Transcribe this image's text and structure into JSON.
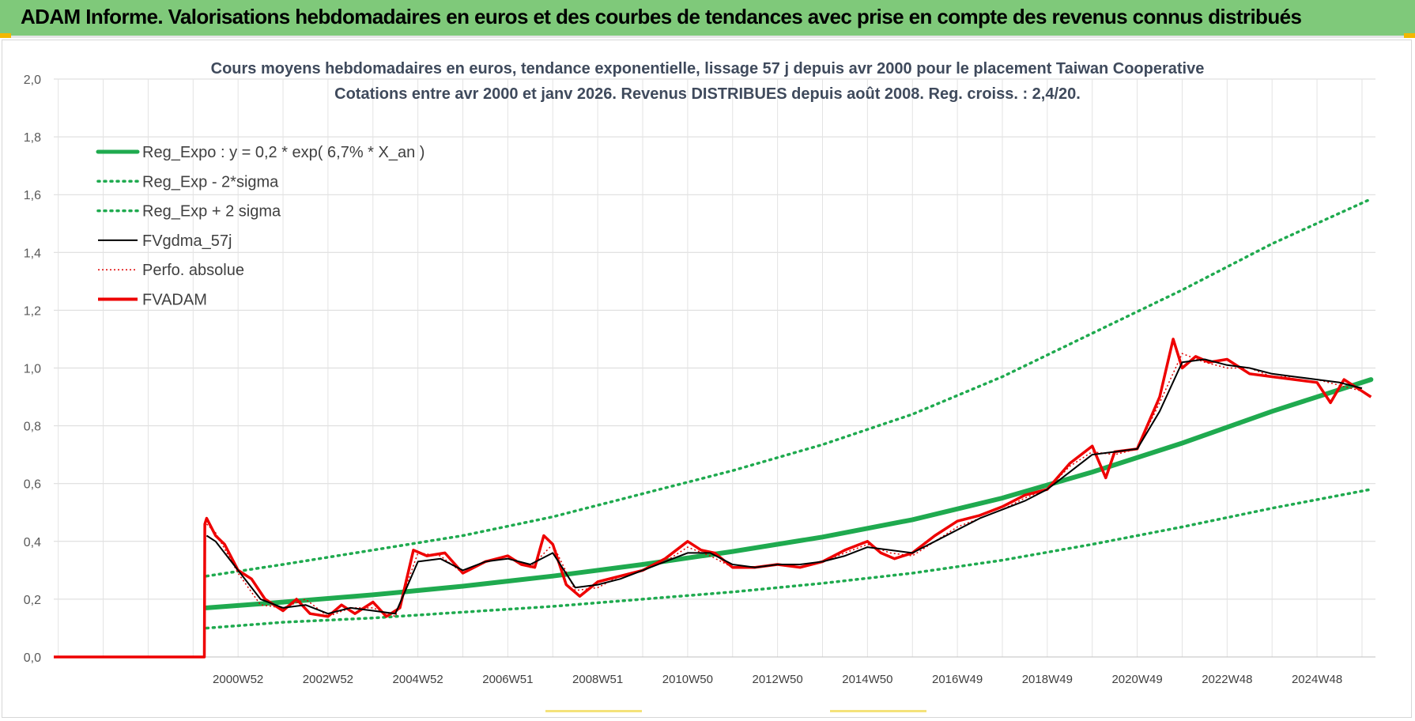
{
  "header": {
    "title": "ADAM Informe. Valorisations hebdomadaires en euros et des courbes de tendances avec prise en compte des revenus connus distribués"
  },
  "colors": {
    "banner": "#7fc97a",
    "reg_expo": "#1faa4f",
    "sigma_bands": "#1faa4f",
    "fvgdma": "#000000",
    "perfo": "#e00000",
    "fvadam": "#ee0000"
  },
  "chart_data": {
    "type": "line",
    "title": "Cours moyens hebdomadaires en euros, tendance exponentielle, lissage 57 j depuis avr 2000 pour le placement Taiwan Cooperative",
    "subtitle": "Cotations entre avr 2000 et janv 2026. Revenus DISTRIBUES depuis août 2008. Reg. croiss. : 2,4/20.",
    "xlabel": "",
    "ylabel": "",
    "ylim": [
      0,
      2.0
    ],
    "xlim": [
      1996.9,
      2026.3
    ],
    "y_ticks": [
      "0,0",
      "0,2",
      "0,4",
      "0,6",
      "0,8",
      "1,0",
      "1,2",
      "1,4",
      "1,6",
      "1,8",
      "2,0"
    ],
    "x_tick_labels": [
      "2000W52",
      "2002W52",
      "2004W52",
      "2006W51",
      "2008W51",
      "2010W50",
      "2012W50",
      "2014W50",
      "2016W49",
      "2018W49",
      "2020W49",
      "2022W48",
      "2024W48"
    ],
    "x_tick_years": [
      2001.0,
      2003.0,
      2005.0,
      2007.0,
      2009.0,
      2011.0,
      2013.0,
      2015.0,
      2017.0,
      2019.0,
      2021.0,
      2023.0,
      2025.0
    ],
    "grid": true,
    "legend_position": "top-left",
    "legend": [
      "Reg_Expo : y = 0,2 * exp( 6,7% *  X_an )",
      "Reg_Exp - 2*sigma",
      "Reg_Exp + 2 sigma",
      "FVgdma_57j",
      "Perfo. absolue",
      "FVADAM"
    ],
    "series": [
      {
        "name": "Reg_Expo : y = 0,2 * exp( 6,7% *  X_an )",
        "style": "solid-thick",
        "x": [
          2000.3,
          2002.0,
          2004.0,
          2006.0,
          2008.0,
          2010.0,
          2012.0,
          2014.0,
          2016.0,
          2018.0,
          2020.0,
          2022.0,
          2024.0,
          2026.2
        ],
        "values": [
          0.17,
          0.19,
          0.215,
          0.245,
          0.28,
          0.32,
          0.365,
          0.415,
          0.475,
          0.55,
          0.64,
          0.74,
          0.85,
          0.96
        ]
      },
      {
        "name": "Reg_Exp - 2*sigma",
        "style": "dotted",
        "x": [
          2000.3,
          2002.0,
          2004.0,
          2006.0,
          2008.0,
          2010.0,
          2012.0,
          2014.0,
          2016.0,
          2018.0,
          2020.0,
          2022.0,
          2024.0,
          2026.2
        ],
        "values": [
          0.1,
          0.12,
          0.135,
          0.155,
          0.175,
          0.2,
          0.225,
          0.255,
          0.29,
          0.335,
          0.39,
          0.45,
          0.515,
          0.58
        ]
      },
      {
        "name": "Reg_Exp + 2 sigma",
        "style": "dotted",
        "x": [
          2000.3,
          2002.0,
          2004.0,
          2006.0,
          2008.0,
          2010.0,
          2012.0,
          2014.0,
          2016.0,
          2018.0,
          2020.0,
          2022.0,
          2024.0,
          2026.2
        ],
        "values": [
          0.28,
          0.32,
          0.37,
          0.42,
          0.485,
          0.565,
          0.645,
          0.735,
          0.84,
          0.97,
          1.12,
          1.27,
          1.43,
          1.585
        ]
      },
      {
        "name": "FVgdma_57j",
        "style": "solid-thin",
        "x": [
          2000.3,
          2000.5,
          2001.0,
          2001.5,
          2002.0,
          2002.5,
          2003.0,
          2003.5,
          2004.0,
          2004.5,
          2005.0,
          2005.5,
          2006.0,
          2006.5,
          2007.0,
          2007.5,
          2008.0,
          2008.5,
          2009.0,
          2009.5,
          2010.0,
          2010.5,
          2011.0,
          2011.5,
          2012.0,
          2012.5,
          2013.0,
          2013.5,
          2014.0,
          2014.5,
          2015.0,
          2015.5,
          2016.0,
          2016.5,
          2017.0,
          2017.5,
          2018.0,
          2018.5,
          2019.0,
          2019.5,
          2020.0,
          2020.5,
          2021.0,
          2021.5,
          2022.0,
          2022.5,
          2023.0,
          2023.5,
          2024.0,
          2024.5,
          2025.0,
          2025.5,
          2026.0
        ],
        "values": [
          0.42,
          0.4,
          0.3,
          0.2,
          0.17,
          0.18,
          0.15,
          0.17,
          0.16,
          0.15,
          0.33,
          0.34,
          0.3,
          0.33,
          0.34,
          0.32,
          0.36,
          0.24,
          0.25,
          0.27,
          0.3,
          0.33,
          0.36,
          0.36,
          0.32,
          0.31,
          0.32,
          0.32,
          0.33,
          0.35,
          0.38,
          0.37,
          0.36,
          0.4,
          0.44,
          0.48,
          0.51,
          0.54,
          0.58,
          0.64,
          0.7,
          0.71,
          0.72,
          0.85,
          1.02,
          1.03,
          1.01,
          1.0,
          0.98,
          0.97,
          0.96,
          0.95,
          0.93
        ]
      },
      {
        "name": "Perfo. absolue",
        "style": "dotted-red",
        "x": [
          2000.3,
          2000.5,
          2001.0,
          2001.5,
          2002.0,
          2002.5,
          2003.0,
          2003.5,
          2004.0,
          2004.5,
          2005.0,
          2005.5,
          2006.0,
          2006.5,
          2007.0,
          2007.5,
          2008.0,
          2008.5,
          2009.0,
          2009.5,
          2010.0,
          2010.5,
          2011.0,
          2011.5,
          2012.0,
          2012.5,
          2013.0,
          2013.5,
          2014.0,
          2014.5,
          2015.0,
          2015.5,
          2016.0,
          2016.5,
          2017.0,
          2017.5,
          2018.0,
          2018.5,
          2019.0,
          2019.5,
          2020.0,
          2020.5,
          2021.0,
          2021.5,
          2022.0,
          2022.5,
          2023.0,
          2023.5,
          2024.0,
          2024.5,
          2025.0,
          2025.5,
          2026.0
        ],
        "values": [
          0.46,
          0.43,
          0.29,
          0.18,
          0.17,
          0.2,
          0.14,
          0.17,
          0.17,
          0.14,
          0.36,
          0.35,
          0.29,
          0.33,
          0.35,
          0.31,
          0.39,
          0.23,
          0.24,
          0.28,
          0.3,
          0.33,
          0.38,
          0.35,
          0.31,
          0.31,
          0.32,
          0.31,
          0.33,
          0.36,
          0.39,
          0.36,
          0.35,
          0.4,
          0.45,
          0.48,
          0.51,
          0.55,
          0.58,
          0.66,
          0.71,
          0.7,
          0.72,
          0.88,
          1.05,
          1.02,
          1.0,
          1.0,
          0.97,
          0.97,
          0.96,
          0.94,
          0.92
        ]
      },
      {
        "name": "FVADAM",
        "style": "solid-red",
        "x": [
          1996.9,
          2000.25,
          2000.26,
          2000.3,
          2000.5,
          2000.7,
          2001.0,
          2001.3,
          2001.6,
          2002.0,
          2002.3,
          2002.6,
          2003.0,
          2003.3,
          2003.6,
          2004.0,
          2004.3,
          2004.6,
          2004.9,
          2005.2,
          2005.6,
          2006.0,
          2006.5,
          2007.0,
          2007.3,
          2007.6,
          2007.8,
          2008.0,
          2008.3,
          2008.6,
          2009.0,
          2009.5,
          2010.0,
          2010.5,
          2011.0,
          2011.3,
          2011.6,
          2012.0,
          2012.5,
          2013.0,
          2013.5,
          2014.0,
          2014.5,
          2015.0,
          2015.3,
          2015.6,
          2016.0,
          2016.5,
          2017.0,
          2017.5,
          2018.0,
          2018.5,
          2019.0,
          2019.5,
          2020.0,
          2020.3,
          2020.5,
          2021.0,
          2021.5,
          2021.8,
          2022.0,
          2022.3,
          2022.6,
          2023.0,
          2023.5,
          2024.0,
          2024.5,
          2025.0,
          2025.3,
          2025.6,
          2026.0,
          2026.2
        ],
        "values": [
          0.0,
          0.0,
          0.46,
          0.48,
          0.42,
          0.39,
          0.3,
          0.27,
          0.2,
          0.16,
          0.2,
          0.15,
          0.14,
          0.18,
          0.15,
          0.19,
          0.14,
          0.17,
          0.37,
          0.35,
          0.36,
          0.29,
          0.33,
          0.35,
          0.32,
          0.31,
          0.42,
          0.39,
          0.25,
          0.21,
          0.26,
          0.28,
          0.3,
          0.34,
          0.4,
          0.37,
          0.36,
          0.31,
          0.31,
          0.32,
          0.31,
          0.33,
          0.37,
          0.4,
          0.36,
          0.34,
          0.36,
          0.42,
          0.47,
          0.49,
          0.52,
          0.56,
          0.58,
          0.67,
          0.73,
          0.62,
          0.71,
          0.72,
          0.9,
          1.1,
          1.0,
          1.04,
          1.02,
          1.03,
          0.98,
          0.97,
          0.96,
          0.95,
          0.88,
          0.96,
          0.92,
          0.9
        ]
      }
    ]
  }
}
